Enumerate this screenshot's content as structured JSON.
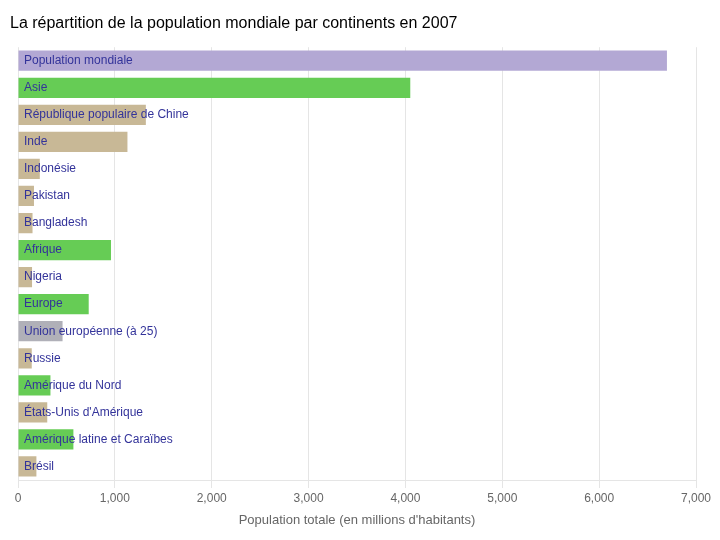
{
  "chart_data": {
    "type": "bar",
    "orientation": "horizontal",
    "title": "La répartition de la population mondiale par continents en 2007",
    "xlabel": "Population totale (en millions d'habitants)",
    "categories": [
      "Population mondiale",
      "Asie",
      "République populaire de Chine",
      "Inde",
      "Indonésie",
      "Pakistan",
      "Bangladesh",
      "Afrique",
      "Nigeria",
      "Europe",
      "Union européenne (à 25)",
      "Russie",
      "Amérique du Nord",
      "États-Unis d'Amérique",
      "Amérique latine et Caraïbes",
      "Brésil"
    ],
    "values": [
      6700,
      4050,
      1320,
      1130,
      225,
      165,
      150,
      960,
      145,
      730,
      460,
      142,
      335,
      302,
      572,
      190
    ],
    "colors": [
      "#b3a8d4",
      "#66cc55",
      "#c8b896",
      "#c8b896",
      "#c8b896",
      "#c8b896",
      "#c8b896",
      "#66cc55",
      "#c8b896",
      "#66cc55",
      "#b0b0b8",
      "#c8b896",
      "#66cc55",
      "#c8b896",
      "#66cc55",
      "#c8b896"
    ],
    "xlim": [
      0,
      7000
    ],
    "xticks": [
      0,
      1000,
      2000,
      3000,
      4000,
      5000,
      6000,
      7000
    ],
    "grid": true,
    "tick_labels": "x"
  }
}
